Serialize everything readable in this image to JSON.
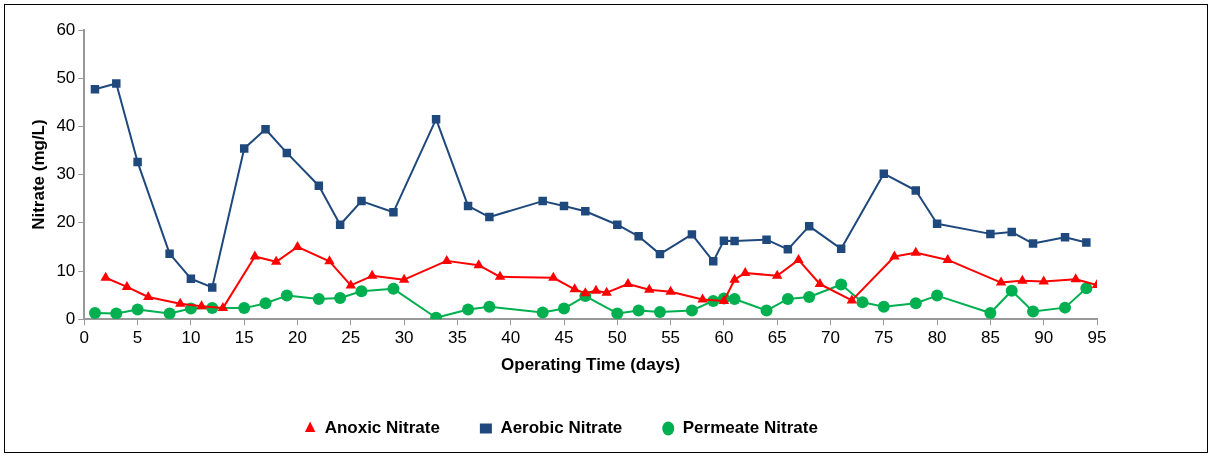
{
  "chart_data": {
    "type": "line",
    "xlabel": "Operating Time (days)",
    "ylabel": "Nitrate (mg/L)",
    "xlim": [
      0,
      95
    ],
    "xticks": [
      0,
      5,
      10,
      15,
      20,
      25,
      30,
      35,
      40,
      45,
      50,
      55,
      60,
      65,
      70,
      75,
      80,
      85,
      90,
      95
    ],
    "ylim": [
      0,
      60
    ],
    "yticks": [
      0,
      10,
      20,
      30,
      40,
      50,
      60
    ],
    "grid": false,
    "legend": "bottom",
    "series": [
      {
        "name": "Anoxic Nitrate",
        "color": "#ff0000",
        "marker": "triangle",
        "x": [
          2,
          4,
          6,
          9,
          11,
          13,
          16,
          18,
          20,
          23,
          25,
          27,
          30,
          34,
          37,
          39,
          44,
          46,
          47,
          48,
          49,
          51,
          53,
          55,
          58,
          60,
          61,
          62,
          65,
          67,
          69,
          72,
          76,
          78,
          81,
          86,
          88,
          90,
          93,
          95
        ],
        "values": [
          8.6,
          6.7,
          4.6,
          3.2,
          2.7,
          2.3,
          13,
          11.9,
          15,
          12,
          7,
          9,
          8.2,
          12.1,
          11.2,
          8.8,
          8.6,
          6.2,
          5.4,
          5.9,
          5.5,
          7.3,
          6.1,
          5.7,
          4.1,
          3.8,
          8.2,
          9.6,
          9.0,
          12.3,
          7.3,
          3.9,
          13,
          13.8,
          12.3,
          7.6,
          8,
          7.8,
          8.3,
          7.1
        ]
      },
      {
        "name": "Aerobic Nitrate",
        "color": "#1f497d",
        "marker": "square",
        "x": [
          1,
          3,
          5,
          8,
          10,
          12,
          15,
          17,
          19,
          22,
          24,
          26,
          29,
          33,
          36,
          38,
          43,
          45,
          47,
          50,
          52,
          54,
          57,
          59,
          60,
          61,
          64,
          66,
          68,
          71,
          75,
          78,
          80,
          85,
          87,
          89,
          92,
          94
        ],
        "values": [
          47.7,
          48.9,
          32.6,
          13.6,
          8.4,
          6.6,
          35.4,
          39.4,
          34.5,
          27.7,
          19.6,
          24.5,
          22.2,
          41.5,
          23.5,
          21.2,
          24.5,
          23.5,
          22.4,
          19.6,
          17.2,
          13.5,
          17.6,
          12,
          16.3,
          16.2,
          16.5,
          14.5,
          19.3,
          14.6,
          30.2,
          26.7,
          19.8,
          17.7,
          18.1,
          15.7,
          17,
          15.9
        ]
      },
      {
        "name": "Permeate Nitrate",
        "color": "#00b050",
        "marker": "circle",
        "x": [
          1,
          3,
          5,
          8,
          10,
          12,
          15,
          17,
          19,
          22,
          24,
          26,
          29,
          33,
          36,
          38,
          43,
          45,
          47,
          50,
          52,
          54,
          57,
          59,
          60,
          61,
          64,
          66,
          68,
          71,
          73,
          75,
          78,
          80,
          85,
          87,
          89,
          92,
          94
        ],
        "values": [
          1.3,
          1.2,
          2,
          1.2,
          2.2,
          2.3,
          2.3,
          3.3,
          4.9,
          4.2,
          4.4,
          5.8,
          6.3,
          0.3,
          2,
          2.6,
          1.4,
          2.2,
          4.8,
          1.2,
          1.8,
          1.5,
          1.8,
          3.8,
          4.3,
          4.2,
          1.8,
          4.2,
          4.6,
          7.2,
          3.5,
          2.6,
          3.3,
          4.9,
          1.3,
          5.9,
          1.6,
          2.4,
          6.4
        ]
      }
    ]
  }
}
